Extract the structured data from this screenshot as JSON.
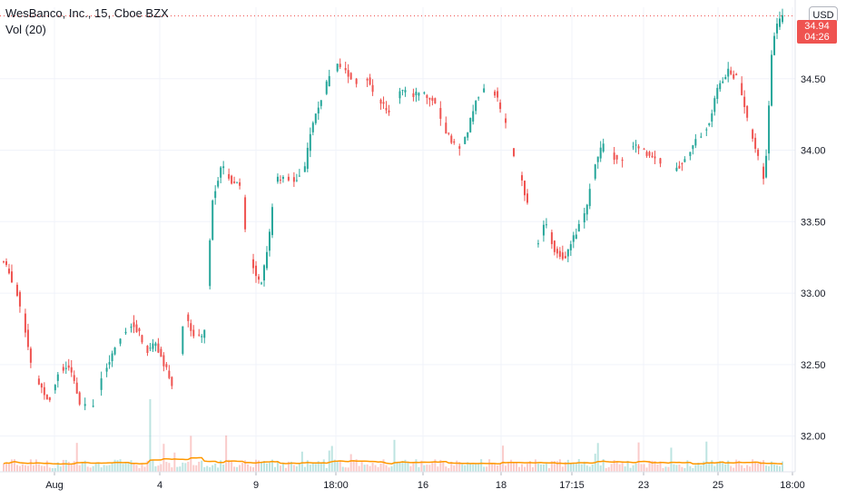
{
  "legend": {
    "symbol": "WesBanco, Inc., 15, Cboe BZX",
    "indicator": "Vol (20)"
  },
  "currency_button": "USD",
  "last_price": {
    "price": "34.94",
    "countdown": "04:26",
    "color": "#ef5350"
  },
  "colors": {
    "up": "#26a69a",
    "down": "#ef5350",
    "ma": "#ff9800",
    "grid": "#f0f3fa",
    "axis_text": "#131722"
  },
  "chart_data": {
    "type": "candlestick",
    "title": "WesBanco, Inc., 15, Cboe BZX",
    "indicator": "Vol (20)",
    "currency": "USD",
    "y_ticks": [
      "34.50",
      "34.00",
      "33.50",
      "33.00",
      "32.50",
      "32.00"
    ],
    "ylim": [
      31.75,
      35.0
    ],
    "x_ticks": [
      "Aug",
      "4",
      "9",
      "18:00",
      "16",
      "18",
      "17:15",
      "23",
      "25",
      "18:00"
    ],
    "last_price": 34.94,
    "price_path": [
      {
        "t": 0.0,
        "p": 33.22
      },
      {
        "t": 1.4,
        "p": 33.05
      },
      {
        "t": 2.4,
        "p": 32.85
      },
      {
        "t": 3.5,
        "p": 32.45
      },
      {
        "t": 5.6,
        "p": 32.25
      },
      {
        "t": 7.0,
        "p": 32.48
      },
      {
        "t": 8.1,
        "p": 32.48
      },
      {
        "t": 9.5,
        "p": 32.22
      },
      {
        "t": 11.0,
        "p": 32.2
      },
      {
        "t": 12.8,
        "p": 32.5
      },
      {
        "t": 14.5,
        "p": 32.7
      },
      {
        "t": 16.0,
        "p": 32.8
      },
      {
        "t": 17.8,
        "p": 32.6
      },
      {
        "t": 18.8,
        "p": 32.65
      },
      {
        "t": 19.9,
        "p": 32.5
      },
      {
        "t": 21.2,
        "p": 32.3
      },
      {
        "t": 22.4,
        "p": 32.85
      },
      {
        "t": 23.6,
        "p": 32.7
      },
      {
        "t": 24.8,
        "p": 32.68
      },
      {
        "t": 25.8,
        "p": 33.65
      },
      {
        "t": 27.0,
        "p": 33.9
      },
      {
        "t": 28.2,
        "p": 33.78
      },
      {
        "t": 29.4,
        "p": 33.75
      },
      {
        "t": 30.2,
        "p": 33.28
      },
      {
        "t": 31.8,
        "p": 33.05
      },
      {
        "t": 32.8,
        "p": 33.35
      },
      {
        "t": 33.6,
        "p": 33.8
      },
      {
        "t": 35.0,
        "p": 33.8
      },
      {
        "t": 36.2,
        "p": 33.8
      },
      {
        "t": 37.2,
        "p": 33.85
      },
      {
        "t": 38.0,
        "p": 34.15
      },
      {
        "t": 39.0,
        "p": 34.3
      },
      {
        "t": 40.2,
        "p": 34.5
      },
      {
        "t": 41.4,
        "p": 34.6
      },
      {
        "t": 42.5,
        "p": 34.55
      },
      {
        "t": 43.8,
        "p": 34.45
      },
      {
        "t": 45.0,
        "p": 34.5
      },
      {
        "t": 46.2,
        "p": 34.38
      },
      {
        "t": 47.6,
        "p": 34.25
      },
      {
        "t": 49.1,
        "p": 34.42
      },
      {
        "t": 50.5,
        "p": 34.38
      },
      {
        "t": 51.8,
        "p": 34.4
      },
      {
        "t": 53.3,
        "p": 34.35
      },
      {
        "t": 54.6,
        "p": 34.15
      },
      {
        "t": 55.6,
        "p": 34.05
      },
      {
        "t": 56.5,
        "p": 34.0
      },
      {
        "t": 57.3,
        "p": 34.1
      },
      {
        "t": 58.4,
        "p": 34.35
      },
      {
        "t": 59.6,
        "p": 34.45
      },
      {
        "t": 60.8,
        "p": 34.4
      },
      {
        "t": 62.0,
        "p": 34.2
      },
      {
        "t": 63.3,
        "p": 33.9
      },
      {
        "t": 64.3,
        "p": 33.75
      },
      {
        "t": 65.2,
        "p": 33.55
      },
      {
        "t": 66.0,
        "p": 33.3
      },
      {
        "t": 67.0,
        "p": 33.5
      },
      {
        "t": 68.2,
        "p": 33.3
      },
      {
        "t": 69.4,
        "p": 33.25
      },
      {
        "t": 70.6,
        "p": 33.4
      },
      {
        "t": 72.0,
        "p": 33.55
      },
      {
        "t": 73.2,
        "p": 33.9
      },
      {
        "t": 74.4,
        "p": 34.08
      },
      {
        "t": 75.6,
        "p": 33.95
      },
      {
        "t": 76.8,
        "p": 33.9
      },
      {
        "t": 77.8,
        "p": 34.05
      },
      {
        "t": 79.0,
        "p": 34.0
      },
      {
        "t": 80.2,
        "p": 33.95
      },
      {
        "t": 81.4,
        "p": 33.92
      },
      {
        "t": 82.6,
        "p": 33.85
      },
      {
        "t": 83.8,
        "p": 33.9
      },
      {
        "t": 85.0,
        "p": 34.0
      },
      {
        "t": 86.2,
        "p": 34.1
      },
      {
        "t": 87.4,
        "p": 34.2
      },
      {
        "t": 88.4,
        "p": 34.45
      },
      {
        "t": 89.6,
        "p": 34.55
      },
      {
        "t": 90.8,
        "p": 34.5
      },
      {
        "t": 91.8,
        "p": 34.3
      },
      {
        "t": 92.6,
        "p": 34.1
      },
      {
        "t": 93.4,
        "p": 33.95
      },
      {
        "t": 94.2,
        "p": 33.78
      },
      {
        "t": 95.2,
        "p": 34.8
      },
      {
        "t": 96.4,
        "p": 34.94
      }
    ]
  }
}
